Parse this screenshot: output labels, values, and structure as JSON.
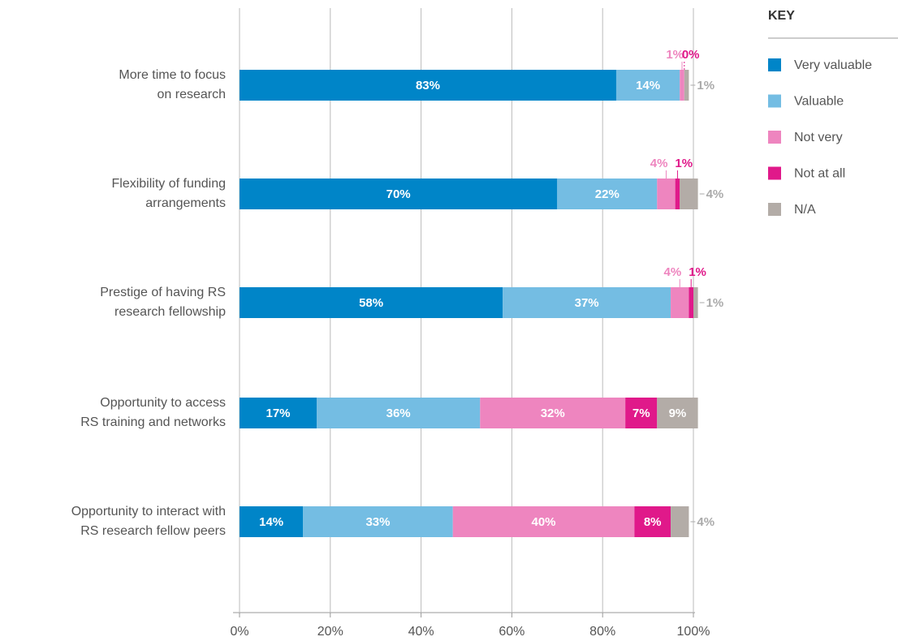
{
  "chart_data": {
    "type": "stacked-bar-horizontal",
    "legend_title": "KEY",
    "categories": [
      [
        "More time to focus",
        "on research"
      ],
      [
        "Flexibility of funding",
        "arrangements"
      ],
      [
        "Prestige of having RS",
        "research fellowship"
      ],
      [
        "Opportunity to access",
        "RS training and networks"
      ],
      [
        "Opportunity to interact with",
        "RS research fellow peers"
      ]
    ],
    "series": [
      {
        "name": "Very valuable",
        "color": "#0085c8",
        "values": [
          83,
          70,
          58,
          17,
          14
        ],
        "value_labels": [
          "83%",
          "70%",
          "58%",
          "17%",
          "14%"
        ]
      },
      {
        "name": "Valuable",
        "color": "#74bde3",
        "values": [
          14,
          22,
          37,
          36,
          33
        ],
        "value_labels": [
          "14%",
          "22%",
          "37%",
          "36%",
          "33%"
        ]
      },
      {
        "name": "Not very",
        "color": "#ee85bf",
        "values": [
          1,
          4,
          4,
          32,
          40
        ],
        "value_labels": [
          "1%",
          "4%",
          "4%",
          "32%",
          "40%"
        ]
      },
      {
        "name": "Not at all",
        "color": "#e0198a",
        "values": [
          0,
          1,
          1,
          7,
          8
        ],
        "value_labels": [
          "0%",
          "1%",
          "1%",
          "7%",
          "8%"
        ]
      },
      {
        "name": "N/A",
        "color": "#b3aca7",
        "values": [
          1,
          4,
          1,
          9,
          4
        ],
        "value_labels": [
          "1%",
          "4%",
          "1%",
          "9%",
          "4%"
        ]
      }
    ],
    "xlim": [
      0,
      100
    ],
    "xticks": [
      {
        "value": 0,
        "label": "0%"
      },
      {
        "value": 20,
        "label": "20%"
      },
      {
        "value": 40,
        "label": "40%"
      },
      {
        "value": 60,
        "label": "60%"
      },
      {
        "value": 80,
        "label": "80%"
      },
      {
        "value": 100,
        "label": "100%"
      }
    ],
    "grid": true,
    "legend": "right"
  }
}
